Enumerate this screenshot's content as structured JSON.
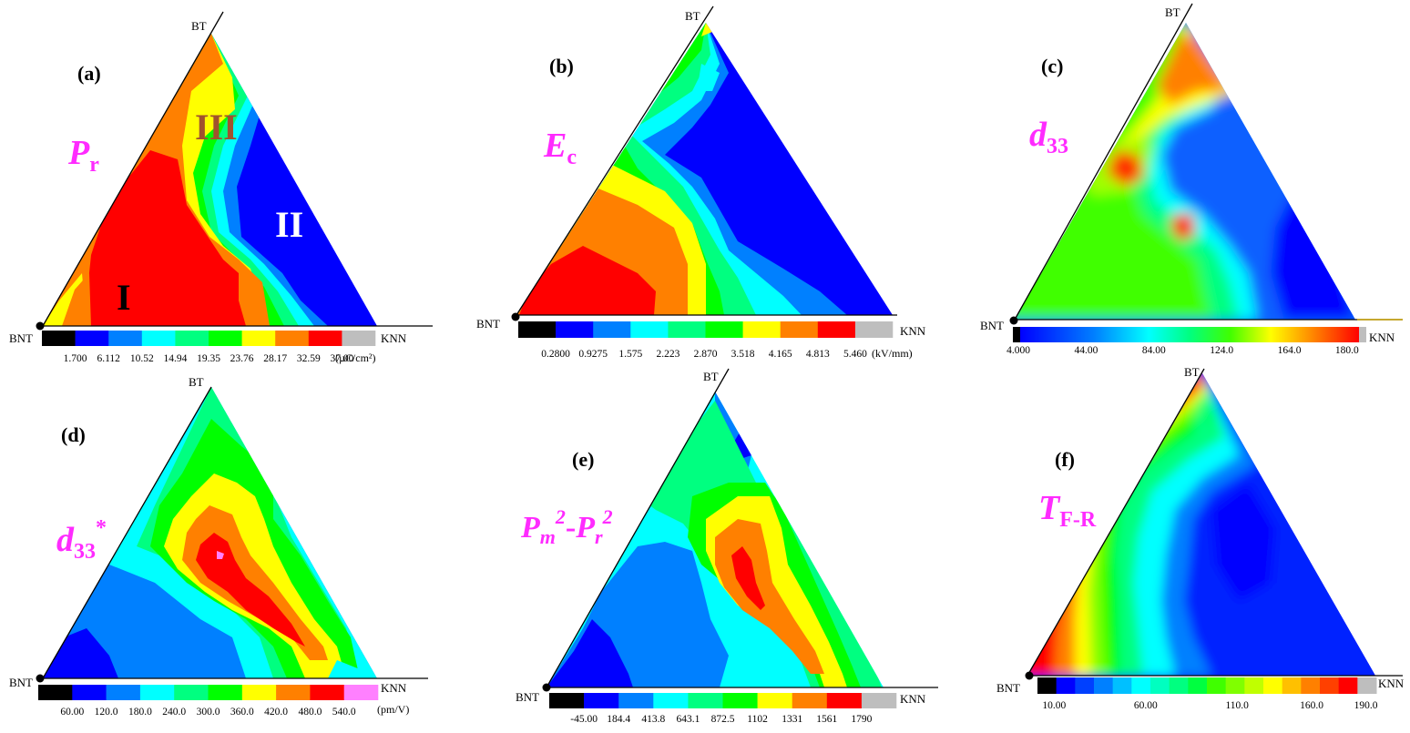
{
  "vertex_labels": {
    "top": "BT",
    "left": "BNT",
    "right": "KNN"
  },
  "chart_data": [
    {
      "type": "heatmap",
      "panel": "(a)",
      "quantity": {
        "main": "P",
        "sub": "r"
      },
      "unit": "(µC/cm²)",
      "colorbar_ticks": [
        "1.700",
        "6.112",
        "10.52",
        "14.94",
        "19.35",
        "23.76",
        "28.17",
        "32.59",
        "37.00"
      ],
      "colorbar_colors": [
        "#000000",
        "#0000ff",
        "#0080ff",
        "#00ffff",
        "#00ff80",
        "#00ff00",
        "#ffff00",
        "#ff8000",
        "#ff0000",
        "#bebebe"
      ],
      "region_labels": [
        {
          "text": "I",
          "color": "#000000"
        },
        {
          "text": "II",
          "color": "#ffffff"
        },
        {
          "text": "III",
          "color": "#a0522d"
        }
      ]
    },
    {
      "type": "heatmap",
      "panel": "(b)",
      "quantity": {
        "main": "E",
        "sub": "c"
      },
      "unit": "(kV/mm)",
      "colorbar_ticks": [
        "0.2800",
        "0.9275",
        "1.575",
        "2.223",
        "2.870",
        "3.518",
        "4.165",
        "4.813",
        "5.460"
      ],
      "colorbar_colors": [
        "#000000",
        "#0000ff",
        "#0080ff",
        "#00ffff",
        "#00ff80",
        "#00ff00",
        "#ffff00",
        "#ff8000",
        "#ff0000",
        "#bebebe"
      ]
    },
    {
      "type": "heatmap",
      "panel": "(c)",
      "quantity": {
        "main": "d",
        "sub": "33"
      },
      "unit": "",
      "colorbar_ticks": [
        "4.000",
        "44.00",
        "84.00",
        "124.0",
        "164.0",
        "180.0"
      ],
      "colorbar_colors": [
        "#000000",
        "#0000ff",
        "#0080ff",
        "#00ffff",
        "#00ff80",
        "#00ff00",
        "#80ff00",
        "#ffff00",
        "#ff8000",
        "#ff0000",
        "#bebebe"
      ]
    },
    {
      "type": "heatmap",
      "panel": "(d)",
      "quantity": {
        "main": "d",
        "sub": "33",
        "sup": "*"
      },
      "unit": "(pm/V)",
      "colorbar_ticks": [
        "60.00",
        "120.0",
        "180.0",
        "240.0",
        "300.0",
        "360.0",
        "420.0",
        "480.0",
        "540.0"
      ],
      "colorbar_colors": [
        "#000000",
        "#0000ff",
        "#0080ff",
        "#00ffff",
        "#00ff80",
        "#00ff00",
        "#ffff00",
        "#ff8000",
        "#ff0000",
        "#ff80ff"
      ]
    },
    {
      "type": "heatmap",
      "panel": "(e)",
      "quantity": {
        "main": "P",
        "sub1": "m",
        "sup1": "2",
        "dash": "-",
        "main2": "P",
        "sub2": "r",
        "sup2": "2"
      },
      "unit": "",
      "colorbar_ticks": [
        "-45.00",
        "184.4",
        "413.8",
        "643.1",
        "872.5",
        "1102",
        "1331",
        "1561",
        "1790"
      ],
      "colorbar_colors": [
        "#000000",
        "#0000ff",
        "#0080ff",
        "#00ffff",
        "#00ff80",
        "#00ff00",
        "#ffff00",
        "#ff8000",
        "#ff0000",
        "#bebebe"
      ]
    },
    {
      "type": "heatmap",
      "panel": "(f)",
      "quantity": {
        "main": "T",
        "sub": "F-R"
      },
      "unit": "",
      "colorbar_ticks": [
        "10.00",
        "60.00",
        "110.0",
        "160.0",
        "190.0"
      ],
      "colorbar_colors": [
        "#000000",
        "#0000ff",
        "#0080ff",
        "#00ffff",
        "#00ff80",
        "#00ff00",
        "#80ff00",
        "#ffff00",
        "#ff8000",
        "#ff0000",
        "#bebebe"
      ]
    }
  ]
}
